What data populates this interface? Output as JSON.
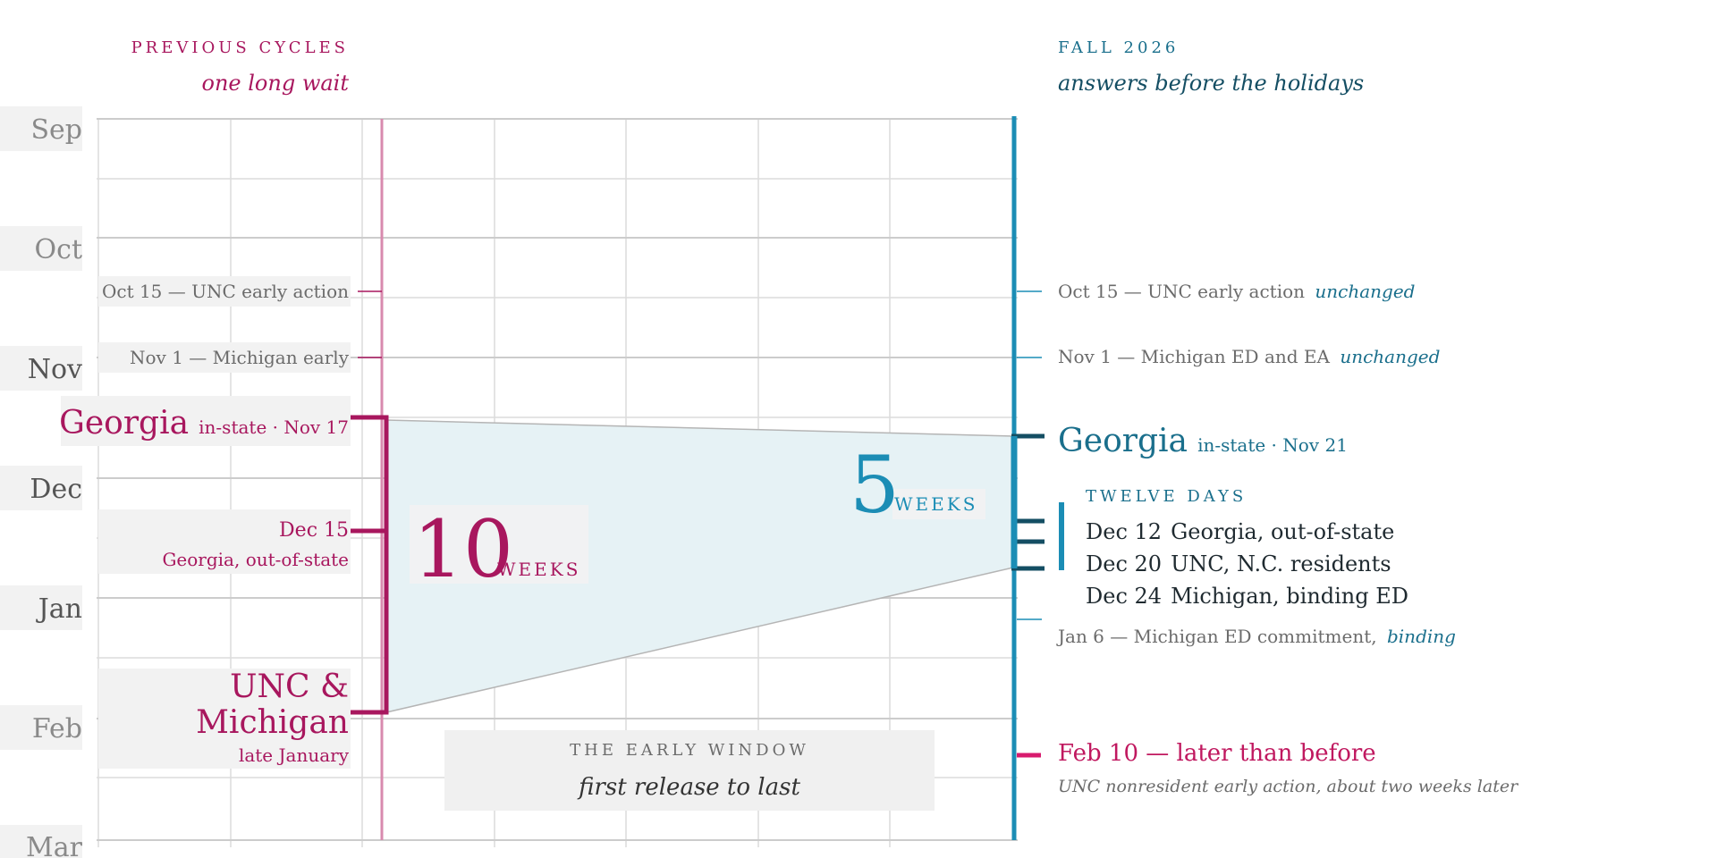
{
  "header": {
    "left": {
      "eyebrow": "PREVIOUS CYCLES",
      "subtitle": "one long wait"
    },
    "right": {
      "eyebrow": "FALL 2026",
      "subtitle": "answers before the holidays"
    }
  },
  "months": [
    "Sep",
    "Oct",
    "Nov",
    "Dec",
    "Jan",
    "Feb",
    "Mar"
  ],
  "previous": {
    "unc_ea": "Oct 15 — UNC early action",
    "mich_early": "Nov 1 — Michigan early",
    "georgia_name": "Georgia",
    "georgia_detail": "in-state · Nov 17",
    "dec15_date": "Dec 15",
    "dec15_detail": "Georgia, out-of-state",
    "unc_mich_line1": "UNC &",
    "unc_mich_line2": "Michigan",
    "unc_mich_detail": "late January",
    "span_number": "10",
    "span_unit": "WEEKS"
  },
  "fall2026": {
    "unc_ea_text": "Oct 15 — UNC early action",
    "unc_ea_note": "unchanged",
    "mich_text": "Nov 1 — Michigan ED and EA",
    "mich_note": "unchanged",
    "georgia_name": "Georgia",
    "georgia_detail": "in-state · Nov 21",
    "twelve_days": "TWELVE DAYS",
    "releases": [
      {
        "date": "Dec 12",
        "label": "Georgia, out-of-state"
      },
      {
        "date": "Dec 20",
        "label": "UNC, N.C. residents"
      },
      {
        "date": "Dec 24",
        "label": "Michigan, binding ED"
      }
    ],
    "jan6_text": "Jan 6 — Michigan ED commitment,",
    "jan6_note": "binding",
    "feb10_text": "Feb 10 — later than before",
    "feb10_detail": "UNC nonresident early action, about two weeks later",
    "span_number": "5",
    "span_unit": "WEEKS"
  },
  "window_box": {
    "title": "THE EARLY WINDOW",
    "subtitle": "first release to last"
  },
  "colors": {
    "magenta": "#a8175e",
    "magenta_light": "#d88aae",
    "teal": "#1b8db5",
    "teal_dark": "#144e63",
    "teal_text": "#1a6f8c",
    "pink": "#d81b6e",
    "gray_text": "#6b6b6b",
    "grid": "#dcdcdc",
    "label_bg": "#f2f2f2",
    "window_fill": "#e6f2f5"
  }
}
